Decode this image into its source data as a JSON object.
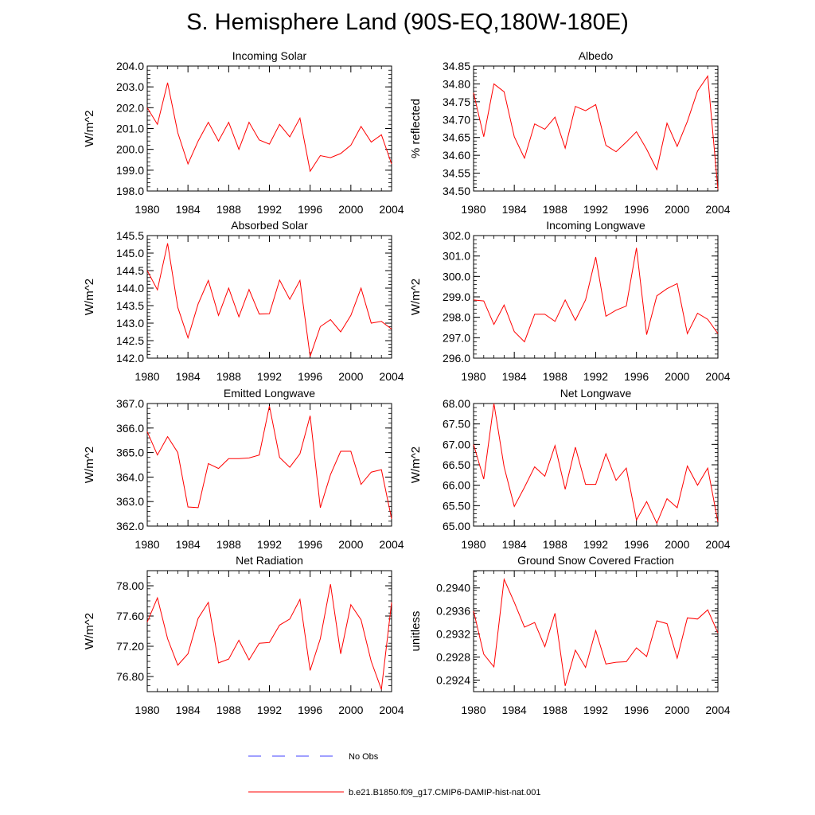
{
  "title": "S. Hemisphere Land (90S-EQ,180W-180E)",
  "colors": {
    "model": "#ff0000",
    "obs": "#4040ff",
    "axis": "#000000"
  },
  "legend": {
    "obs_label": "No Obs",
    "model_label": "b.e21.B1850.f09_g17.CMIP6-DAMIP-hist-nat.001"
  },
  "chart_data": [
    {
      "type": "line",
      "title": "Incoming Solar",
      "ylabel": "W/m^2",
      "ylim": [
        198.0,
        204.0
      ],
      "yticks": [
        "198.0",
        "199.0",
        "200.0",
        "201.0",
        "202.0",
        "203.0",
        "204.0"
      ],
      "xlim": [
        1980,
        2004
      ],
      "xticks": [
        "1980",
        "1984",
        "1988",
        "1992",
        "1996",
        "2000",
        "2004"
      ],
      "x": [
        1980,
        1981,
        1982,
        1983,
        1984,
        1985,
        1986,
        1987,
        1988,
        1989,
        1990,
        1991,
        1992,
        1993,
        1994,
        1995,
        1996,
        1997,
        1998,
        1999,
        2000,
        2001,
        2002,
        2003,
        2004
      ],
      "series": [
        {
          "values": [
            202.0,
            201.2,
            203.2,
            200.8,
            199.3,
            200.4,
            201.3,
            200.4,
            201.3,
            200.0,
            201.3,
            200.45,
            200.25,
            201.2,
            200.6,
            201.5,
            198.95,
            199.7,
            199.6,
            199.8,
            200.2,
            201.1,
            200.35,
            200.7,
            199.3
          ]
        }
      ]
    },
    {
      "type": "line",
      "title": "Albedo",
      "ylabel": "% reflected",
      "ylim": [
        34.5,
        34.85
      ],
      "yticks": [
        "34.50",
        "34.55",
        "34.60",
        "34.65",
        "34.70",
        "34.75",
        "34.80",
        "34.85"
      ],
      "xlim": [
        1980,
        2004
      ],
      "xticks": [
        "1980",
        "1984",
        "1988",
        "1992",
        "1996",
        "2000",
        "2004"
      ],
      "x": [
        1980,
        1981,
        1982,
        1983,
        1984,
        1985,
        1986,
        1987,
        1988,
        1989,
        1990,
        1991,
        1992,
        1993,
        1994,
        1995,
        1996,
        1997,
        1998,
        1999,
        2000,
        2001,
        2002,
        2003,
        2004
      ],
      "series": [
        {
          "values": [
            34.775,
            34.652,
            34.8,
            34.778,
            34.652,
            34.592,
            34.688,
            34.673,
            34.707,
            34.62,
            34.737,
            34.725,
            34.742,
            34.628,
            34.61,
            34.637,
            34.666,
            34.617,
            34.56,
            34.69,
            34.625,
            34.695,
            34.78,
            34.822,
            34.505
          ]
        }
      ]
    },
    {
      "type": "line",
      "title": "Absorbed Solar",
      "ylabel": "W/m^2",
      "ylim": [
        142.0,
        145.5
      ],
      "yticks": [
        "142.0",
        "142.5",
        "143.0",
        "143.5",
        "144.0",
        "144.5",
        "145.0",
        "145.5"
      ],
      "xlim": [
        1980,
        2004
      ],
      "xticks": [
        "1980",
        "1984",
        "1988",
        "1992",
        "1996",
        "2000",
        "2004"
      ],
      "x": [
        1980,
        1981,
        1982,
        1983,
        1984,
        1985,
        1986,
        1987,
        1988,
        1989,
        1990,
        1991,
        1992,
        1993,
        1994,
        1995,
        1996,
        1997,
        1998,
        1999,
        2000,
        2001,
        2002,
        2003,
        2004
      ],
      "series": [
        {
          "values": [
            144.5,
            143.95,
            145.28,
            143.45,
            142.58,
            143.55,
            144.22,
            143.22,
            144.0,
            143.18,
            143.96,
            143.26,
            143.27,
            144.23,
            143.68,
            144.22,
            142.05,
            142.9,
            143.1,
            142.75,
            143.22,
            144.0,
            143.0,
            143.05,
            142.83
          ]
        }
      ]
    },
    {
      "type": "line",
      "title": "Incoming Longwave",
      "ylabel": "W/m^2",
      "ylim": [
        296.0,
        302.0
      ],
      "yticks": [
        "296.0",
        "297.0",
        "298.0",
        "299.0",
        "300.0",
        "301.0",
        "302.0"
      ],
      "xlim": [
        1980,
        2004
      ],
      "xticks": [
        "1980",
        "1984",
        "1988",
        "1992",
        "1996",
        "2000",
        "2004"
      ],
      "x": [
        1980,
        1981,
        1982,
        1983,
        1984,
        1985,
        1986,
        1987,
        1988,
        1989,
        1990,
        1991,
        1992,
        1993,
        1994,
        1995,
        1996,
        1997,
        1998,
        1999,
        2000,
        2001,
        2002,
        2003,
        2004
      ],
      "series": [
        {
          "values": [
            298.85,
            298.8,
            297.65,
            298.6,
            297.3,
            296.8,
            298.15,
            298.15,
            297.8,
            298.85,
            297.85,
            298.85,
            300.95,
            298.05,
            298.35,
            298.55,
            301.4,
            297.15,
            299.05,
            299.4,
            299.65,
            297.2,
            298.2,
            297.9,
            297.2
          ]
        }
      ]
    },
    {
      "type": "line",
      "title": "Emitted Longwave",
      "ylabel": "W/m^2",
      "ylim": [
        362.0,
        367.0
      ],
      "yticks": [
        "362.0",
        "363.0",
        "364.0",
        "365.0",
        "366.0",
        "367.0"
      ],
      "xlim": [
        1980,
        2004
      ],
      "xticks": [
        "1980",
        "1984",
        "1988",
        "1992",
        "1996",
        "2000",
        "2004"
      ],
      "x": [
        1980,
        1981,
        1982,
        1983,
        1984,
        1985,
        1986,
        1987,
        1988,
        1989,
        1990,
        1991,
        1992,
        1993,
        1994,
        1995,
        1996,
        1997,
        1998,
        1999,
        2000,
        2001,
        2002,
        2003,
        2004
      ],
      "series": [
        {
          "values": [
            365.85,
            364.9,
            365.65,
            365.0,
            362.78,
            362.75,
            364.55,
            364.35,
            364.75,
            364.75,
            364.78,
            364.9,
            366.9,
            364.8,
            364.4,
            364.95,
            366.5,
            362.75,
            364.1,
            365.05,
            365.05,
            363.7,
            364.2,
            364.3,
            362.3
          ]
        }
      ]
    },
    {
      "type": "line",
      "title": "Net Longwave",
      "ylabel": "W/m^2",
      "ylim": [
        65.0,
        68.0
      ],
      "yticks": [
        "65.00",
        "65.50",
        "66.00",
        "66.50",
        "67.00",
        "67.50",
        "68.00"
      ],
      "xlim": [
        1980,
        2004
      ],
      "xticks": [
        "1980",
        "1984",
        "1988",
        "1992",
        "1996",
        "2000",
        "2004"
      ],
      "x": [
        1980,
        1981,
        1982,
        1983,
        1984,
        1985,
        1986,
        1987,
        1988,
        1989,
        1990,
        1991,
        1992,
        1993,
        1994,
        1995,
        1996,
        1997,
        1998,
        1999,
        2000,
        2001,
        2002,
        2003,
        2004
      ],
      "series": [
        {
          "values": [
            67.0,
            66.15,
            68.0,
            66.45,
            65.48,
            65.95,
            66.45,
            66.22,
            66.97,
            65.9,
            66.93,
            66.02,
            66.02,
            66.77,
            66.12,
            66.42,
            65.15,
            65.6,
            65.07,
            65.67,
            65.45,
            66.47,
            66.0,
            66.42,
            65.1
          ]
        }
      ]
    },
    {
      "type": "line",
      "title": "Net Radiation",
      "ylabel": "W/m^2",
      "ylim": [
        76.6,
        78.2
      ],
      "yticks": [
        "76.80",
        "77.20",
        "77.60",
        "78.00"
      ],
      "ytick_values": [
        76.8,
        77.2,
        77.6,
        78.0
      ],
      "xlim": [
        1980,
        2004
      ],
      "xticks": [
        "1980",
        "1984",
        "1988",
        "1992",
        "1996",
        "2000",
        "2004"
      ],
      "x": [
        1980,
        1981,
        1982,
        1983,
        1984,
        1985,
        1986,
        1987,
        1988,
        1989,
        1990,
        1991,
        1992,
        1993,
        1994,
        1995,
        1996,
        1997,
        1998,
        1999,
        2000,
        2001,
        2002,
        2003,
        2004
      ],
      "series": [
        {
          "values": [
            77.52,
            77.84,
            77.3,
            76.95,
            77.1,
            77.57,
            77.78,
            76.98,
            77.03,
            77.28,
            77.02,
            77.24,
            77.25,
            77.48,
            77.56,
            77.82,
            76.88,
            77.3,
            78.02,
            77.1,
            77.75,
            77.55,
            77.0,
            76.63,
            77.78
          ]
        }
      ]
    },
    {
      "type": "line",
      "title": "Ground Snow Covered Fraction",
      "ylabel": "unitless",
      "ylim": [
        0.2922,
        0.2943
      ],
      "yticks": [
        "0.2924",
        "0.2928",
        "0.2932",
        "0.2936",
        "0.2940"
      ],
      "ytick_values": [
        0.2924,
        0.2928,
        0.2932,
        0.2936,
        0.294
      ],
      "xlim": [
        1980,
        2004
      ],
      "xticks": [
        "1980",
        "1984",
        "1988",
        "1992",
        "1996",
        "2000",
        "2004"
      ],
      "x": [
        1980,
        1981,
        1982,
        1983,
        1984,
        1985,
        1986,
        1987,
        1988,
        1989,
        1990,
        1991,
        1992,
        1993,
        1994,
        1995,
        1996,
        1997,
        1998,
        1999,
        2000,
        2001,
        2002,
        2003,
        2004
      ],
      "series": [
        {
          "values": [
            0.2936,
            0.29285,
            0.29263,
            0.29415,
            0.29375,
            0.29332,
            0.2934,
            0.29298,
            0.29356,
            0.2923,
            0.29292,
            0.29262,
            0.29326,
            0.29268,
            0.29271,
            0.29272,
            0.29296,
            0.29281,
            0.29343,
            0.29338,
            0.29278,
            0.29348,
            0.29346,
            0.29362,
            0.29322
          ]
        }
      ]
    }
  ]
}
